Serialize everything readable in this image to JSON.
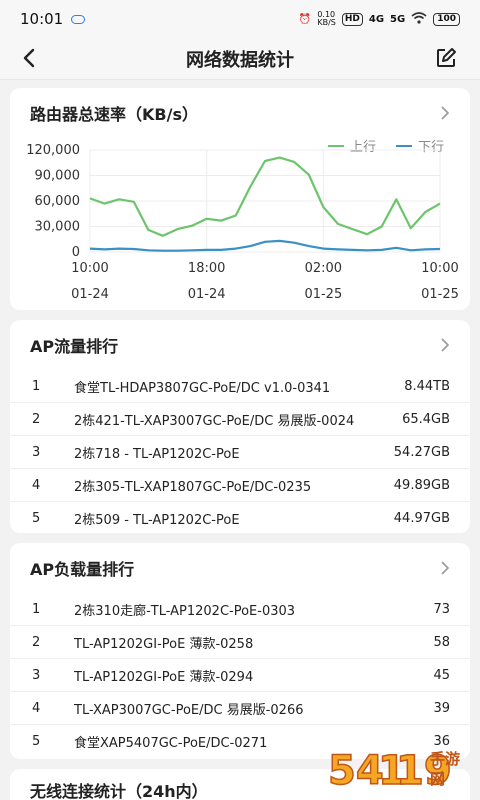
{
  "status": {
    "time": "10:01",
    "speed_value": "0.10",
    "speed_unit": "KB/S",
    "hd": "HD",
    "net1": "4G",
    "net2": "5G",
    "battery": "100"
  },
  "nav": {
    "title": "网络数据统计"
  },
  "speed_card": {
    "title": "路由器总速率（KB/s）",
    "legend_up": "上行",
    "legend_down": "下行",
    "colors": {
      "up": "#6cc46c",
      "down": "#3a8fc4"
    }
  },
  "chart_data": {
    "type": "line",
    "title": "路由器总速率（KB/s）",
    "ylim": [
      0,
      120000
    ],
    "yticks": [
      "120,000",
      "90,000",
      "60,000",
      "30,000",
      "0"
    ],
    "xticks": [
      {
        "time": "10:00",
        "date": "01-24"
      },
      {
        "time": "18:00",
        "date": "01-24"
      },
      {
        "time": "02:00",
        "date": "01-25"
      },
      {
        "time": "10:00",
        "date": "01-25"
      }
    ],
    "series": [
      {
        "name": "上行",
        "values": [
          63000,
          57000,
          62000,
          59000,
          26000,
          19000,
          27000,
          31000,
          39000,
          37000,
          43000,
          77000,
          107000,
          111000,
          106000,
          91000,
          53000,
          33000,
          27000,
          21000,
          30000,
          62000,
          28000,
          47000,
          57000
        ]
      },
      {
        "name": "下行",
        "values": [
          4000,
          3000,
          4000,
          3500,
          2000,
          1500,
          1500,
          2000,
          2500,
          2500,
          4000,
          7000,
          12000,
          13000,
          11000,
          7000,
          4000,
          3000,
          2500,
          2000,
          2500,
          5000,
          2000,
          3000,
          3500
        ]
      }
    ]
  },
  "ap_traffic": {
    "title": "AP流量排行",
    "rows": [
      {
        "idx": "1",
        "name": "食堂TL-HDAP3807GC-PoE/DC v1.0-0341",
        "value": "8.44TB"
      },
      {
        "idx": "2",
        "name": "2栋421-TL-XAP3007GC-PoE/DC 易展版-0024",
        "value": "65.4GB"
      },
      {
        "idx": "3",
        "name": "2栋718 - TL-AP1202C-PoE",
        "value": "54.27GB"
      },
      {
        "idx": "4",
        "name": "2栋305-TL-XAP1807GC-PoE/DC-0235",
        "value": "49.89GB"
      },
      {
        "idx": "5",
        "name": "2栋509 - TL-AP1202C-PoE",
        "value": "44.97GB"
      }
    ]
  },
  "ap_load": {
    "title": "AP负载量排行",
    "rows": [
      {
        "idx": "1",
        "name": "2栋310走廊-TL-AP1202C-PoE-0303",
        "value": "73"
      },
      {
        "idx": "2",
        "name": "TL-AP1202GI-PoE 薄款-0258",
        "value": "58"
      },
      {
        "idx": "3",
        "name": "TL-AP1202GI-PoE 薄款-0294",
        "value": "45"
      },
      {
        "idx": "4",
        "name": "TL-XAP3007GC-PoE/DC 易展版-0266",
        "value": "39"
      },
      {
        "idx": "5",
        "name": "食堂XAP5407GC-PoE/DC-0271",
        "value": "36"
      }
    ]
  },
  "wifi_card": {
    "title": "无线连接统计（24h内）"
  },
  "watermark": {
    "text": "54119手游网"
  }
}
